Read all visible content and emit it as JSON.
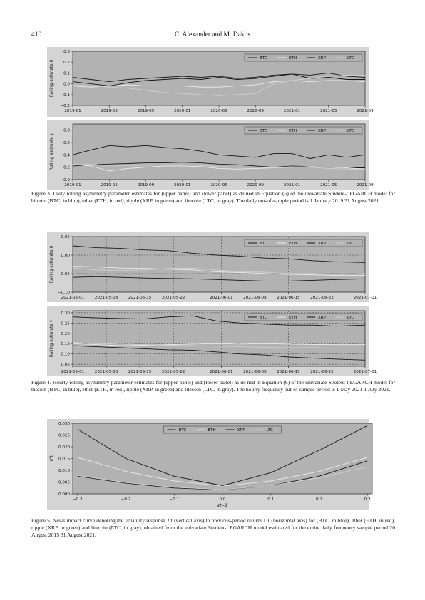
{
  "header": {
    "page_number": "410",
    "authors": "C. Alexander and M. Dakos"
  },
  "colors": {
    "plot_bg": "#b2b2b2",
    "frame": "#222222",
    "btc": "#1a1a1a",
    "eth": "#ececec",
    "xrp": "#141414",
    "ltc": "#cfcfcf"
  },
  "legend": [
    "BTC",
    "ETH",
    "XRP",
    "LTC"
  ],
  "captions": {
    "fig3": {
      "label": "Figure 3.",
      "text": "Daily rolling asymmetry parameter estimates for (upper panel) and (lower panel) as de ned in Equation (6) of the univariate Student-t EGARCH model for bitcoin (BTC, in blue), ether (ETH, in red), ripple (XRP, in green) and litecoin (LTC, in gray). The daily out-of-sample period is 1 January 2019 31 August 2021."
    },
    "fig4": {
      "label": "Figure 4.",
      "text": "Hourly rolling asymmetry parameter estimates for (upper panel) and (lower panel) as de ned in Equation (6) of the univariate Student-t EGARCH model for bitcoin (BTC, in blue), ether (ETH, in red), ripple (XRP, in green) and litecoin (LTC, in gray). The hourly frequency out-of-sample period is 1 May 2021 1 July 2021."
    },
    "fig5": {
      "label": "Figure 5.",
      "text": "News impact curve denoting the volatility response 2 t (vertical axis) to previous-period returns t 1 (horizontal axis) for (BTC, in blue), ether (ETH, in red), ripple (XRP, in green) and litecoin (LTC, in gray), obtained from the univariate Student-t EGARCH model estimated for the entire daily frequency sample period 20 August 2015 31 August 2021."
    }
  },
  "chart_data": [
    {
      "id": "fig3-upper",
      "type": "line",
      "ylabel": "Rolling estimate θ",
      "xlabel": "",
      "x_ticks": [
        "2019-01",
        "2019-05",
        "2019-09",
        "2020-01",
        "2020-05",
        "2020-09",
        "2021-01",
        "2021-05",
        "2021-09"
      ],
      "xlim": [
        0,
        32
      ],
      "x_tick_pos": [
        0,
        4,
        8,
        12,
        16,
        20,
        24,
        28,
        32
      ],
      "ylim": [
        -0.2,
        0.3
      ],
      "y_ticks": [
        -0.2,
        -0.1,
        0.0,
        0.1,
        0.2,
        0.3
      ],
      "y_tick_labels": [
        "−0.2",
        "−0.1",
        "0.0",
        "0.1",
        "0.2",
        "0.3"
      ],
      "grid": false,
      "legend_loc": "upper-right",
      "series": [
        {
          "name": "BTC",
          "x": [
            0,
            2,
            4,
            6,
            8,
            10,
            12,
            14,
            16,
            18,
            20,
            22,
            24,
            26,
            28,
            30,
            32
          ],
          "values": [
            0.06,
            0.04,
            0.02,
            0.04,
            0.05,
            0.06,
            0.07,
            0.06,
            0.07,
            0.05,
            0.06,
            0.08,
            0.09,
            0.08,
            0.1,
            0.07,
            0.06
          ]
        },
        {
          "name": "ETH",
          "x": [
            0,
            2,
            4,
            6,
            8,
            10,
            12,
            14,
            16,
            18,
            20,
            22,
            24,
            26,
            28,
            30,
            32
          ],
          "values": [
            -0.02,
            -0.03,
            -0.02,
            -0.01,
            -0.02,
            -0.02,
            -0.02,
            -0.03,
            -0.03,
            -0.02,
            -0.01,
            0.02,
            0.03,
            0.02,
            0.03,
            0.03,
            0.02
          ]
        },
        {
          "name": "XRP",
          "x": [
            0,
            2,
            4,
            6,
            8,
            10,
            12,
            14,
            16,
            18,
            20,
            22,
            24,
            26,
            28,
            30,
            32
          ],
          "values": [
            0.02,
            0.0,
            -0.02,
            0.01,
            0.03,
            0.04,
            0.05,
            0.04,
            0.06,
            0.04,
            0.05,
            0.07,
            0.09,
            0.05,
            0.06,
            0.04,
            0.04
          ]
        },
        {
          "name": "LTC",
          "x": [
            0,
            2,
            4,
            6,
            8,
            10,
            12,
            14,
            16,
            18,
            20,
            22,
            24,
            26,
            28,
            30,
            32
          ],
          "values": [
            -0.01,
            -0.02,
            -0.03,
            -0.04,
            -0.06,
            -0.08,
            -0.09,
            -0.1,
            -0.11,
            -0.1,
            -0.09,
            0.0,
            0.03,
            0.05,
            0.07,
            0.08,
            0.08
          ]
        }
      ]
    },
    {
      "id": "fig3-lower",
      "type": "line",
      "ylabel": "Rolling estimate γ",
      "xlabel": "",
      "x_ticks": [
        "2019-01",
        "2019-05",
        "2019-09",
        "2020-01",
        "2020-05",
        "2020-09",
        "2021-01",
        "2021-05",
        "2021-09"
      ],
      "xlim": [
        0,
        32
      ],
      "x_tick_pos": [
        0,
        4,
        8,
        12,
        16,
        20,
        24,
        28,
        32
      ],
      "ylim": [
        0.0,
        0.9
      ],
      "y_ticks": [
        0.0,
        0.2,
        0.4,
        0.6,
        0.8
      ],
      "y_tick_labels": [
        "0.0",
        "0.2",
        "0.4",
        "0.6",
        "0.8"
      ],
      "grid": false,
      "legend_loc": "upper-right",
      "series": [
        {
          "name": "BTC",
          "x": [
            0,
            2,
            4,
            6,
            8,
            10,
            12,
            14,
            16,
            18,
            20,
            22,
            24,
            26,
            28,
            30,
            32
          ],
          "values": [
            0.22,
            0.24,
            0.25,
            0.26,
            0.27,
            0.27,
            0.28,
            0.27,
            0.25,
            0.24,
            0.22,
            0.2,
            0.22,
            0.21,
            0.2,
            0.19,
            0.19
          ]
        },
        {
          "name": "ETH",
          "x": [
            0,
            2,
            4,
            6,
            8,
            10,
            12,
            14,
            16,
            18,
            20,
            22,
            24,
            26,
            28,
            30,
            32
          ],
          "values": [
            0.25,
            0.22,
            0.14,
            0.18,
            0.2,
            0.22,
            0.22,
            0.21,
            0.18,
            0.17,
            0.18,
            0.19,
            0.2,
            0.21,
            0.2,
            0.19,
            0.17
          ]
        },
        {
          "name": "XRP",
          "x": [
            0,
            2,
            4,
            6,
            8,
            10,
            12,
            14,
            16,
            18,
            20,
            22,
            24,
            26,
            28,
            30,
            32
          ],
          "values": [
            0.4,
            0.48,
            0.55,
            0.53,
            0.55,
            0.52,
            0.5,
            0.46,
            0.4,
            0.38,
            0.36,
            0.42,
            0.42,
            0.34,
            0.4,
            0.36,
            0.4
          ]
        },
        {
          "name": "LTC",
          "x": [
            0,
            2,
            4,
            6,
            8,
            10,
            12,
            14,
            16,
            18,
            20,
            22,
            24,
            26,
            28,
            30,
            32
          ],
          "values": [
            0.24,
            0.25,
            0.22,
            0.23,
            0.23,
            0.24,
            0.24,
            0.23,
            0.21,
            0.2,
            0.2,
            0.19,
            0.21,
            0.2,
            0.18,
            0.17,
            0.17
          ]
        }
      ]
    },
    {
      "id": "fig4-upper",
      "type": "line",
      "ylabel": "Rolling estimate θ",
      "xlabel": "",
      "x_ticks": [
        "2021-05-01",
        "2021-05-08",
        "2021-05-15",
        "2021-05-22",
        "2021-06-01",
        "2021-06-08",
        "2021-06-15",
        "2021-06-22",
        "2021-07-01"
      ],
      "xlim": [
        0,
        61
      ],
      "x_tick_pos": [
        0,
        7,
        14,
        21,
        31,
        38,
        45,
        52,
        61
      ],
      "ylim": [
        -0.1,
        0.05
      ],
      "y_ticks": [
        -0.1,
        -0.05,
        0.0,
        0.05
      ],
      "y_tick_labels": [
        "−0.10",
        "−0.05",
        "0.00",
        "0.05"
      ],
      "grid": true,
      "legend_loc": "upper-right",
      "series": [
        {
          "name": "BTC",
          "x": [
            0,
            5,
            10,
            15,
            20,
            25,
            30,
            35,
            40,
            45,
            50,
            55,
            61
          ],
          "values": [
            0.025,
            0.02,
            0.018,
            0.014,
            0.012,
            0.005,
            0.0,
            -0.003,
            -0.008,
            -0.01,
            -0.015,
            -0.018,
            -0.02
          ]
        },
        {
          "name": "ETH",
          "x": [
            0,
            5,
            10,
            15,
            20,
            25,
            30,
            35,
            40,
            45,
            50,
            55,
            61
          ],
          "values": [
            -0.03,
            -0.032,
            -0.035,
            -0.036,
            -0.038,
            -0.04,
            -0.045,
            -0.047,
            -0.05,
            -0.052,
            -0.053,
            -0.055,
            -0.055
          ]
        },
        {
          "name": "XRP",
          "x": [
            0,
            5,
            10,
            15,
            20,
            25,
            30,
            35,
            40,
            45,
            50,
            55,
            61
          ],
          "values": [
            -0.06,
            -0.058,
            -0.06,
            -0.062,
            -0.063,
            -0.064,
            -0.066,
            -0.068,
            -0.07,
            -0.07,
            -0.068,
            -0.066,
            -0.064
          ]
        },
        {
          "name": "LTC",
          "x": [
            0,
            5,
            10,
            15,
            20,
            25,
            30,
            35,
            40,
            45,
            50,
            55,
            61
          ],
          "values": [
            -0.035,
            -0.04,
            -0.042,
            -0.04,
            -0.036,
            -0.035,
            -0.04,
            -0.045,
            -0.046,
            -0.05,
            -0.05,
            -0.052,
            -0.05
          ]
        }
      ]
    },
    {
      "id": "fig4-lower",
      "type": "line",
      "ylabel": "Rolling estimate γ",
      "xlabel": "",
      "x_ticks": [
        "2021-05-01",
        "2021-05-08",
        "2021-05-15",
        "2021-05-22",
        "2021-06-01",
        "2021-06-08",
        "2021-06-15",
        "2021-06-22",
        "2021-07-01"
      ],
      "xlim": [
        0,
        61
      ],
      "x_tick_pos": [
        0,
        7,
        14,
        21,
        31,
        38,
        45,
        52,
        61
      ],
      "ylim": [
        0.04,
        0.31
      ],
      "y_ticks": [
        0.05,
        0.1,
        0.15,
        0.2,
        0.25,
        0.3
      ],
      "y_tick_labels": [
        "0.05",
        "0.10",
        "0.15",
        "0.20",
        "0.25",
        "0.30"
      ],
      "grid": true,
      "legend_loc": "upper-right",
      "series": [
        {
          "name": "BTC",
          "x": [
            0,
            5,
            10,
            15,
            20,
            25,
            30,
            35,
            40,
            45,
            50,
            55,
            61
          ],
          "values": [
            0.14,
            0.135,
            0.13,
            0.125,
            0.12,
            0.118,
            0.11,
            0.1,
            0.095,
            0.085,
            0.08,
            0.075,
            0.07
          ]
        },
        {
          "name": "ETH",
          "x": [
            0,
            5,
            10,
            15,
            20,
            25,
            30,
            35,
            40,
            45,
            50,
            55,
            61
          ],
          "values": [
            0.15,
            0.145,
            0.14,
            0.142,
            0.145,
            0.148,
            0.15,
            0.148,
            0.15,
            0.148,
            0.146,
            0.145,
            0.145
          ]
        },
        {
          "name": "XRP",
          "x": [
            0,
            5,
            10,
            15,
            20,
            25,
            30,
            35,
            40,
            45,
            50,
            55,
            61
          ],
          "values": [
            0.28,
            0.275,
            0.272,
            0.27,
            0.28,
            0.285,
            0.26,
            0.25,
            0.245,
            0.24,
            0.24,
            0.235,
            0.24
          ]
        },
        {
          "name": "LTC",
          "x": [
            0,
            5,
            10,
            15,
            20,
            25,
            30,
            35,
            40,
            45,
            50,
            55,
            61
          ],
          "values": [
            0.155,
            0.15,
            0.148,
            0.145,
            0.142,
            0.14,
            0.138,
            0.135,
            0.132,
            0.13,
            0.13,
            0.128,
            0.128
          ]
        }
      ]
    },
    {
      "id": "fig5",
      "type": "line",
      "ylabel": "σ²t",
      "xlabel": "εt−1",
      "x_ticks": [
        "−0.3",
        "−0.2",
        "−0.1",
        "0.0",
        "0.1",
        "0.2",
        "0.3"
      ],
      "xlim": [
        -0.31,
        0.31
      ],
      "x_tick_pos": [
        -0.3,
        -0.2,
        -0.1,
        0.0,
        0.1,
        0.2,
        0.3
      ],
      "ylim": [
        0.0,
        0.03
      ],
      "y_ticks": [
        0.0,
        0.005,
        0.01,
        0.015,
        0.02,
        0.025,
        0.03
      ],
      "y_tick_labels": [
        "0.000",
        "0.005",
        "0.010",
        "0.015",
        "0.020",
        "0.025",
        "0.030"
      ],
      "grid": false,
      "legend_loc": "upper-center",
      "series": [
        {
          "name": "BTC",
          "x": [
            -0.3,
            -0.2,
            -0.1,
            0.0,
            0.1,
            0.2,
            0.3
          ],
          "values": [
            0.0075,
            0.0045,
            0.0025,
            0.0017,
            0.0035,
            0.0075,
            0.014
          ]
        },
        {
          "name": "ETH",
          "x": [
            -0.3,
            -0.2,
            -0.1,
            0.0,
            0.1,
            0.2,
            0.3
          ],
          "values": [
            0.0155,
            0.0095,
            0.0055,
            0.0033,
            0.0055,
            0.0095,
            0.0155
          ]
        },
        {
          "name": "XRP",
          "x": [
            -0.3,
            -0.2,
            -0.1,
            0.0,
            0.1,
            0.2,
            0.3
          ],
          "values": [
            0.0275,
            0.015,
            0.0075,
            0.0035,
            0.009,
            0.0185,
            0.029
          ]
        },
        {
          "name": "LTC",
          "x": [
            -0.3,
            -0.2,
            -0.1,
            0.0,
            0.1,
            0.2,
            0.3
          ],
          "values": [
            0.0078,
            0.0048,
            0.0028,
            0.0018,
            0.0035,
            0.0068,
            0.0115
          ]
        }
      ]
    }
  ]
}
